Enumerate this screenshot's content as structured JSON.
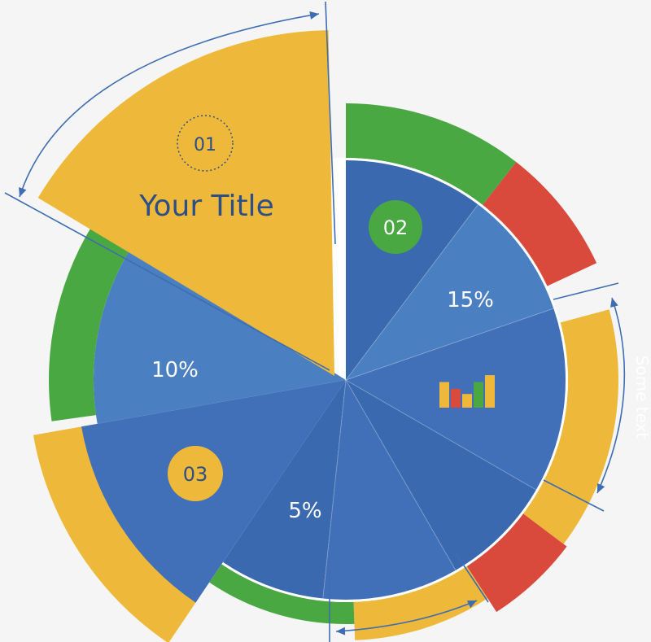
{
  "colors": {
    "background": "#f5f5f5",
    "blue_dark": "#3a69b0",
    "blue_mid": "#4170b8",
    "blue_light": "#4a7fc1",
    "yellow": "#eeb93a",
    "green": "#4aa843",
    "red": "#d94a3d",
    "arrow": "#3f6db2",
    "title_text": "#2d4f86",
    "white": "#ffffff"
  },
  "title_slice": {
    "number": "01",
    "title": "Your Title"
  },
  "badges": {
    "badge_02": "02",
    "badge_03": "03"
  },
  "percent_labels": {
    "p15": "15%",
    "p10": "10%",
    "p5": "5%"
  },
  "side_text": "Some text",
  "mini_bars": {
    "bars": [
      {
        "color": "yellow",
        "level": 0.75
      },
      {
        "color": "red",
        "level": 0.55
      },
      {
        "color": "yellow",
        "level": 0.4
      },
      {
        "color": "green",
        "level": 0.75
      },
      {
        "color": "yellow",
        "level": 0.95
      }
    ]
  }
}
